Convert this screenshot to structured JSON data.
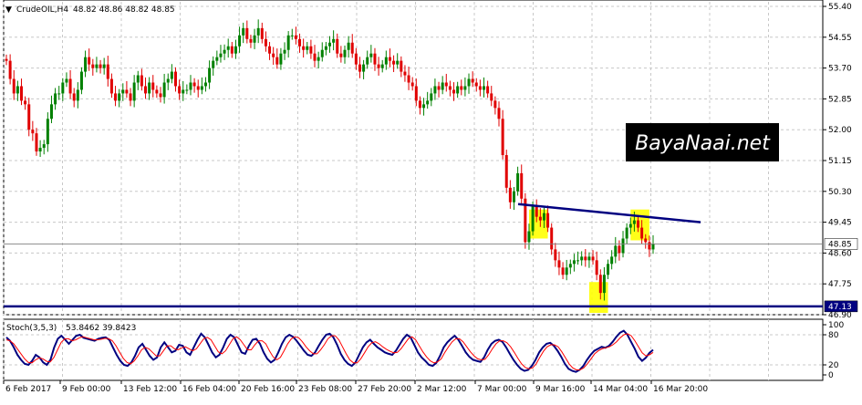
{
  "header": {
    "symbol_label": "CrudeOIL,H4",
    "ohlc_values": "48.82 48.86 48.82 48.85"
  },
  "indicator": {
    "label": "Stoch(3,5,3)",
    "values": "53.8462 39.8423",
    "yticks": [
      100,
      80,
      20,
      0
    ]
  },
  "watermark": "BayaNaai.net",
  "chart_data": [
    {
      "type": "candlestick",
      "symbol": "CrudeOIL",
      "timeframe": "H4",
      "ylim": [
        46.9,
        55.4
      ],
      "y_ticks": [
        "55.40",
        "54.55",
        "53.70",
        "52.85",
        "52.00",
        "51.15",
        "50.30",
        "49.45",
        "48.60",
        "47.75",
        "46.90"
      ],
      "x_ticks": [
        "6 Feb 2017",
        "9 Feb 00:00",
        "13 Feb 12:00",
        "16 Feb 04:00",
        "20 Feb 16:00",
        "23 Feb 08:00",
        "27 Feb 20:00",
        "2 Mar 12:00",
        "7 Mar 00:00",
        "9 Mar 16:00",
        "14 Mar 04:00",
        "16 Mar 20:00"
      ],
      "current_price": "48.85",
      "support_level": "47.13",
      "trendline": {
        "from": 49.95,
        "to": 49.45
      },
      "highlights": [
        "49.8-49.0 near 9 Mar 16:00",
        "47.8-47.1 near 14 Mar 04:00",
        "49.8-49.0 near 16 Mar 20:00"
      ],
      "grid": true,
      "closes": [
        53.9,
        53.4,
        53.0,
        53.2,
        52.8,
        52.7,
        52.0,
        51.9,
        51.4,
        51.5,
        51.6,
        52.3,
        52.7,
        53.0,
        53.0,
        53.3,
        53.4,
        53.0,
        52.8,
        53.1,
        53.6,
        54.0,
        53.8,
        53.7,
        53.8,
        53.7,
        53.8,
        53.4,
        53.0,
        52.8,
        53.0,
        53.1,
        53.0,
        52.8,
        53.3,
        53.5,
        53.2,
        53.0,
        53.3,
        53.1,
        53.0,
        52.9,
        53.3,
        53.4,
        53.6,
        53.2,
        53.0,
        53.1,
        53.1,
        53.3,
        53.2,
        53.1,
        53.2,
        53.3,
        53.7,
        53.9,
        54.0,
        54.1,
        54.2,
        54.3,
        54.1,
        54.3,
        54.6,
        54.8,
        54.5,
        54.4,
        54.6,
        54.8,
        54.5,
        54.3,
        54.1,
        54.0,
        53.8,
        54.1,
        54.2,
        54.6,
        54.6,
        54.5,
        54.3,
        54.2,
        54.3,
        54.1,
        53.9,
        54.0,
        54.2,
        54.3,
        54.4,
        54.5,
        54.1,
        54.0,
        54.2,
        54.4,
        54.1,
        53.8,
        53.6,
        53.8,
        54.0,
        54.1,
        53.8,
        53.7,
        53.8,
        54.0,
        53.9,
        53.8,
        53.9,
        53.6,
        53.5,
        53.3,
        53.2,
        52.8,
        52.6,
        52.7,
        52.8,
        53.0,
        53.2,
        53.1,
        53.3,
        53.2,
        53.1,
        53.0,
        53.2,
        53.1,
        53.2,
        53.4,
        53.3,
        53.2,
        53.1,
        53.2,
        53.0,
        52.8,
        52.6,
        52.3,
        51.3,
        50.4,
        50.0,
        50.3,
        50.8,
        50.1,
        48.9,
        49.2,
        49.9,
        49.6,
        49.5,
        49.7,
        49.3,
        48.7,
        48.4,
        48.2,
        48.0,
        48.2,
        48.3,
        48.4,
        48.4,
        48.5,
        48.4,
        48.5,
        48.4,
        48.0,
        47.5,
        48.0,
        48.3,
        48.5,
        48.8,
        48.6,
        49.0,
        49.3,
        49.4,
        49.5,
        49.3,
        49.0,
        48.9,
        48.7,
        48.85
      ]
    },
    {
      "type": "line",
      "title": "Stoch(3,5,3)",
      "ylim": [
        0,
        100
      ],
      "levels": [
        20,
        80
      ],
      "series": [
        {
          "name": "%K",
          "color": "#000080",
          "values": [
            75,
            68,
            55,
            40,
            30,
            22,
            20,
            28,
            40,
            35,
            25,
            20,
            30,
            55,
            72,
            78,
            70,
            62,
            70,
            78,
            80,
            74,
            72,
            70,
            68,
            72,
            74,
            75,
            70,
            55,
            40,
            28,
            20,
            18,
            25,
            38,
            55,
            62,
            50,
            38,
            30,
            35,
            55,
            65,
            55,
            45,
            48,
            60,
            58,
            45,
            40,
            55,
            70,
            82,
            75,
            60,
            45,
            35,
            40,
            55,
            72,
            80,
            75,
            60,
            45,
            42,
            58,
            70,
            72,
            62,
            45,
            32,
            25,
            30,
            45,
            62,
            75,
            80,
            76,
            68,
            58,
            48,
            40,
            38,
            45,
            58,
            70,
            80,
            82,
            75,
            60,
            42,
            30,
            22,
            18,
            25,
            40,
            55,
            65,
            70,
            62,
            55,
            50,
            45,
            42,
            40,
            48,
            60,
            72,
            80,
            75,
            60,
            45,
            35,
            28,
            20,
            18,
            24,
            38,
            55,
            65,
            72,
            78,
            70,
            58,
            45,
            36,
            30,
            28,
            26,
            35,
            50,
            62,
            68,
            70,
            66,
            55,
            42,
            30,
            20,
            12,
            8,
            10,
            18,
            30,
            45,
            55,
            62,
            64,
            58,
            48,
            36,
            22,
            12,
            8,
            6,
            10,
            18,
            30,
            40,
            48,
            52,
            56,
            54,
            58,
            66,
            76,
            84,
            88,
            80,
            66,
            52,
            36,
            28,
            34,
            44,
            50
          ]
        },
        {
          "name": "%D",
          "color": "#ff0000",
          "values": [
            70,
            68,
            62,
            52,
            42,
            32,
            25,
            24,
            30,
            34,
            32,
            27,
            26,
            35,
            50,
            65,
            72,
            72,
            68,
            70,
            74,
            76,
            74,
            72,
            70,
            70,
            71,
            73,
            72,
            68,
            58,
            45,
            33,
            25,
            22,
            28,
            38,
            50,
            55,
            52,
            45,
            38,
            38,
            48,
            58,
            58,
            52,
            50,
            54,
            56,
            52,
            48,
            52,
            62,
            72,
            75,
            70,
            58,
            46,
            42,
            48,
            60,
            72,
            76,
            70,
            60,
            50,
            50,
            60,
            68,
            68,
            62,
            48,
            36,
            30,
            35,
            48,
            62,
            72,
            76,
            74,
            66,
            56,
            48,
            42,
            42,
            50,
            60,
            72,
            78,
            78,
            70,
            56,
            42,
            30,
            24,
            24,
            32,
            44,
            56,
            64,
            66,
            62,
            56,
            51,
            47,
            44,
            45,
            52,
            62,
            72,
            76,
            70,
            58,
            46,
            36,
            28,
            24,
            26,
            32,
            45,
            56,
            66,
            72,
            72,
            66,
            56,
            46,
            38,
            32,
            30,
            31,
            40,
            52,
            62,
            68,
            68,
            64,
            56,
            45,
            33,
            22,
            15,
            12,
            14,
            22,
            35,
            47,
            56,
            60,
            60,
            56,
            46,
            34,
            22,
            14,
            10,
            10,
            14,
            22,
            32,
            42,
            48,
            52,
            54,
            56,
            60,
            66,
            74,
            80,
            82,
            78,
            68,
            56,
            44,
            38,
            40,
            45
          ]
        }
      ]
    }
  ]
}
